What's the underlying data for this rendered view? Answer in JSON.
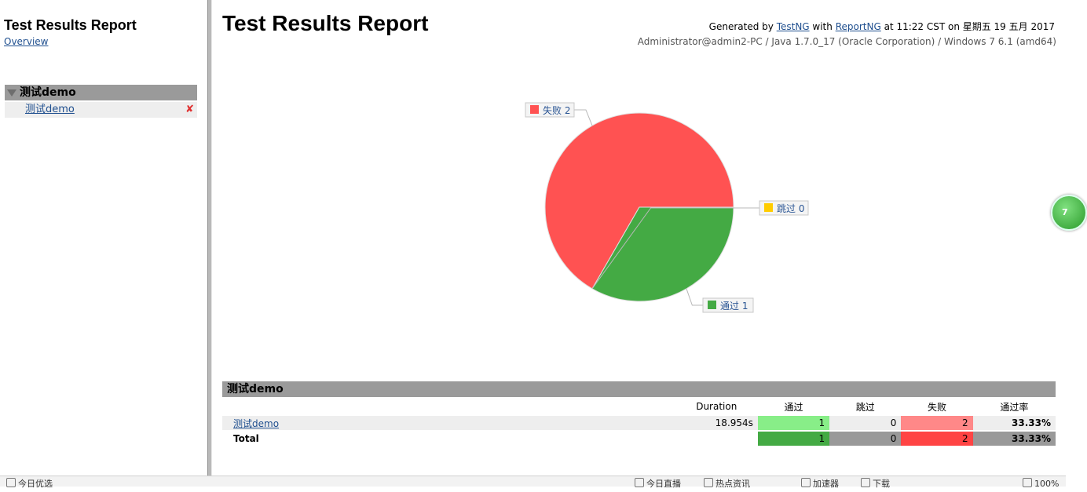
{
  "nav": {
    "title": "Test Results Report",
    "overview_link": "Overview",
    "suite_name": "测试demo",
    "tests": [
      {
        "name": "测试demo",
        "status_icon": "✘"
      }
    ]
  },
  "header": {
    "title": "Test Results Report",
    "generated_prefix": "Generated by ",
    "testng_link": "TestNG",
    "with_text": " with ",
    "reportng_link": "ReportNG",
    "generated_suffix": " at 11:22 CST on 星期五 19 五月 2017",
    "system_info": "Administrator@admin2-PC / Java 1.7.0_17 (Oracle Corporation) / Windows 7 6.1 (amd64)"
  },
  "chart_data": {
    "type": "pie",
    "slices": [
      {
        "label": "失败",
        "value": 2,
        "color": "#ff5252"
      },
      {
        "label": "跳过",
        "value": 0,
        "color": "#ffcc00"
      },
      {
        "label": "通过",
        "value": 1,
        "color": "#44aa44"
      }
    ],
    "legend_labels": [
      "失败 2",
      "跳过 0",
      "通过 1"
    ]
  },
  "results": {
    "group_title": "测试demo",
    "columns": {
      "duration": "Duration",
      "passed": "通过",
      "skipped": "跳过",
      "failed": "失败",
      "pass_rate": "通过率"
    },
    "rows": [
      {
        "name": "测试demo",
        "duration": "18.954s",
        "passed": "1",
        "skipped": "0",
        "failed": "2",
        "pass_rate": "33.33%"
      }
    ],
    "total": {
      "label": "Total",
      "passed": "1",
      "skipped": "0",
      "failed": "2",
      "pass_rate": "33.33%"
    }
  },
  "colors": {
    "pass": "#44aa44",
    "fail": "#ff4444",
    "skip": "#ffcc00",
    "header_gray": "#9a9a9a"
  },
  "float_widget": {
    "label": "7"
  },
  "statusbar": {
    "items": [
      "今日优选",
      "今日直播",
      "热点资讯",
      "加速器",
      "下载",
      "100%"
    ]
  }
}
